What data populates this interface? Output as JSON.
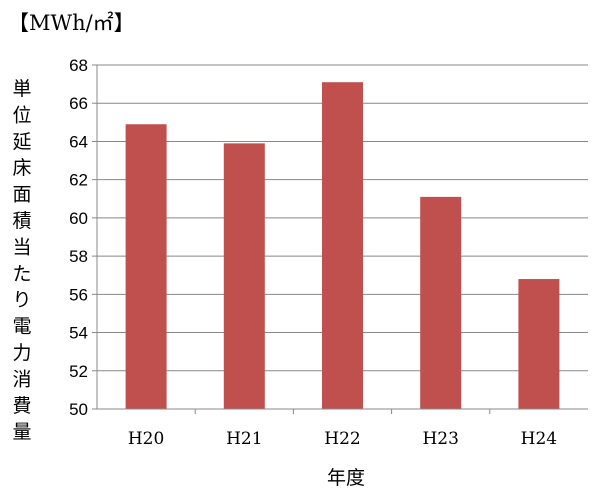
{
  "chart_data": {
    "type": "bar",
    "unit_label": "【MWh/㎡】",
    "ylabel": "単位延床面積当たり電力消費量",
    "xlabel": "年度",
    "categories": [
      "H20",
      "H21",
      "H22",
      "H23",
      "H24"
    ],
    "values": [
      64.9,
      63.9,
      67.1,
      61.1,
      56.8
    ],
    "ylim": [
      50,
      68
    ],
    "yticks": [
      "50",
      "52",
      "54",
      "56",
      "58",
      "60",
      "62",
      "64",
      "66",
      "68"
    ],
    "grid": true,
    "bar_color": "#c0504d"
  }
}
